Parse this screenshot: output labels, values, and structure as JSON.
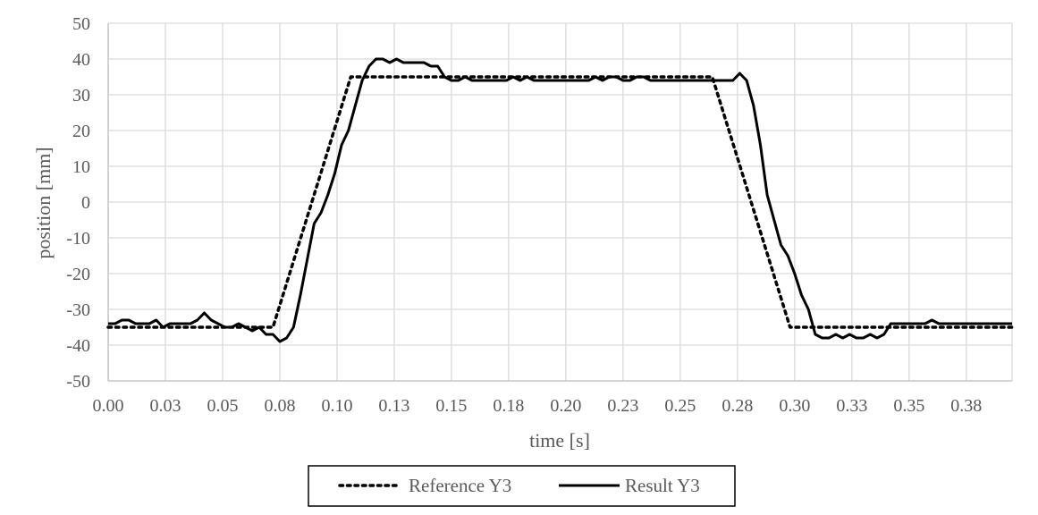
{
  "chart_data": {
    "type": "line",
    "title": "",
    "xlabel": "time [s]",
    "ylabel": "position [mm]",
    "xlim": [
      0,
      0.395
    ],
    "ylim": [
      -50,
      50
    ],
    "x_ticks": [
      0.0,
      0.025,
      0.05,
      0.075,
      0.1,
      0.125,
      0.15,
      0.175,
      0.2,
      0.225,
      0.25,
      0.275,
      0.3,
      0.325,
      0.35,
      0.375
    ],
    "x_tick_labels": [
      "0.00",
      "0.03",
      "0.05",
      "0.08",
      "0.10",
      "0.13",
      "0.15",
      "0.18",
      "0.20",
      "0.23",
      "0.25",
      "0.28",
      "0.30",
      "0.33",
      "0.35",
      "0.38"
    ],
    "y_ticks": [
      -50,
      -40,
      -30,
      -20,
      -10,
      0,
      10,
      20,
      30,
      40,
      50
    ],
    "y_tick_labels": [
      "-50",
      "-40",
      "-30",
      "-20",
      "-10",
      "0",
      "10",
      "20",
      "30",
      "40",
      "50"
    ],
    "grid": true,
    "legend_position": "bottom-center",
    "series": [
      {
        "name": "Reference Y3",
        "style": "dotted",
        "color": "#000000",
        "x": [
          0.0,
          0.072,
          0.106,
          0.264,
          0.298,
          0.395
        ],
        "y": [
          -35,
          -35,
          35,
          35,
          -35,
          -35
        ]
      },
      {
        "name": "Result Y3",
        "style": "solid",
        "color": "#000000",
        "x": [
          0.0,
          0.003,
          0.006,
          0.009,
          0.012,
          0.015,
          0.018,
          0.021,
          0.024,
          0.027,
          0.03,
          0.033,
          0.036,
          0.039,
          0.042,
          0.045,
          0.048,
          0.051,
          0.054,
          0.057,
          0.06,
          0.063,
          0.066,
          0.069,
          0.072,
          0.075,
          0.078,
          0.081,
          0.084,
          0.087,
          0.09,
          0.093,
          0.096,
          0.099,
          0.102,
          0.105,
          0.108,
          0.111,
          0.114,
          0.117,
          0.12,
          0.123,
          0.126,
          0.129,
          0.132,
          0.135,
          0.138,
          0.141,
          0.144,
          0.147,
          0.15,
          0.153,
          0.156,
          0.159,
          0.162,
          0.165,
          0.168,
          0.171,
          0.174,
          0.177,
          0.18,
          0.183,
          0.186,
          0.189,
          0.192,
          0.195,
          0.198,
          0.201,
          0.204,
          0.207,
          0.21,
          0.213,
          0.216,
          0.219,
          0.222,
          0.225,
          0.228,
          0.231,
          0.234,
          0.237,
          0.24,
          0.243,
          0.246,
          0.249,
          0.252,
          0.255,
          0.258,
          0.261,
          0.264,
          0.267,
          0.27,
          0.273,
          0.276,
          0.279,
          0.282,
          0.285,
          0.288,
          0.291,
          0.294,
          0.297,
          0.3,
          0.303,
          0.306,
          0.309,
          0.312,
          0.315,
          0.318,
          0.321,
          0.324,
          0.327,
          0.33,
          0.333,
          0.336,
          0.339,
          0.342,
          0.345,
          0.348,
          0.351,
          0.354,
          0.357,
          0.36,
          0.363,
          0.366,
          0.369,
          0.372,
          0.375,
          0.378,
          0.381,
          0.384,
          0.387,
          0.39,
          0.395
        ],
        "y": [
          -34,
          -34,
          -33,
          -33,
          -34,
          -34,
          -34,
          -33,
          -35,
          -34,
          -34,
          -34,
          -34,
          -33,
          -31,
          -33,
          -34,
          -35,
          -35,
          -34,
          -35,
          -36,
          -35,
          -37,
          -37,
          -39,
          -38,
          -35,
          -26,
          -16,
          -6,
          -3,
          2,
          8,
          16,
          20,
          27,
          34,
          38,
          40,
          40,
          39,
          40,
          39,
          39,
          39,
          39,
          38,
          38,
          35,
          34,
          34,
          35,
          34,
          34,
          34,
          34,
          34,
          34,
          35,
          34,
          35,
          34,
          34,
          34,
          34,
          34,
          34,
          34,
          34,
          34,
          35,
          34,
          35,
          35,
          34,
          34,
          35,
          35,
          34,
          34,
          34,
          34,
          34,
          34,
          34,
          34,
          34,
          34,
          34,
          34,
          34,
          36,
          34,
          27,
          16,
          2,
          -5,
          -12,
          -15,
          -20,
          -26,
          -30,
          -37,
          -38,
          -38,
          -37,
          -38,
          -37,
          -38,
          -38,
          -37,
          -38,
          -37,
          -34,
          -34,
          -34,
          -34,
          -34,
          -34,
          -33,
          -34,
          -34,
          -34,
          -34,
          -34,
          -34,
          -34,
          -34,
          -34,
          -34,
          -34
        ]
      }
    ]
  }
}
